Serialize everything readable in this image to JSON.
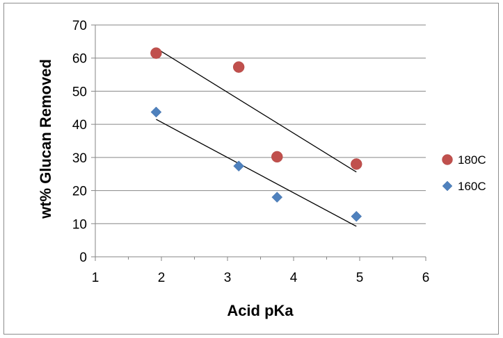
{
  "chart_data": {
    "type": "scatter",
    "title": "",
    "xlabel": "Acid pKa",
    "ylabel": "wt% Glucan Removed",
    "xlim": [
      1,
      6
    ],
    "ylim": [
      0,
      70
    ],
    "x_ticks": [
      "1",
      "2",
      "3",
      "4",
      "5",
      "6"
    ],
    "y_ticks": [
      "0",
      "10",
      "20",
      "30",
      "40",
      "50",
      "60",
      "70"
    ],
    "grid": "horizontal",
    "legend_position": "right",
    "series": [
      {
        "name": "180C",
        "marker": "circle",
        "color": "#c0504d",
        "points": [
          [
            1.92,
            61.5
          ],
          [
            3.17,
            57.3
          ],
          [
            3.75,
            30.2
          ],
          [
            4.95,
            28.0
          ]
        ],
        "trendline": [
          [
            1.92,
            63.0
          ],
          [
            4.95,
            25.6
          ]
        ]
      },
      {
        "name": "160C",
        "marker": "diamond",
        "color": "#4f81bd",
        "points": [
          [
            1.92,
            43.7
          ],
          [
            3.17,
            27.4
          ],
          [
            3.75,
            18.0
          ],
          [
            4.95,
            12.2
          ]
        ],
        "trendline": [
          [
            1.92,
            41.5
          ],
          [
            4.95,
            9.2
          ]
        ]
      }
    ]
  }
}
